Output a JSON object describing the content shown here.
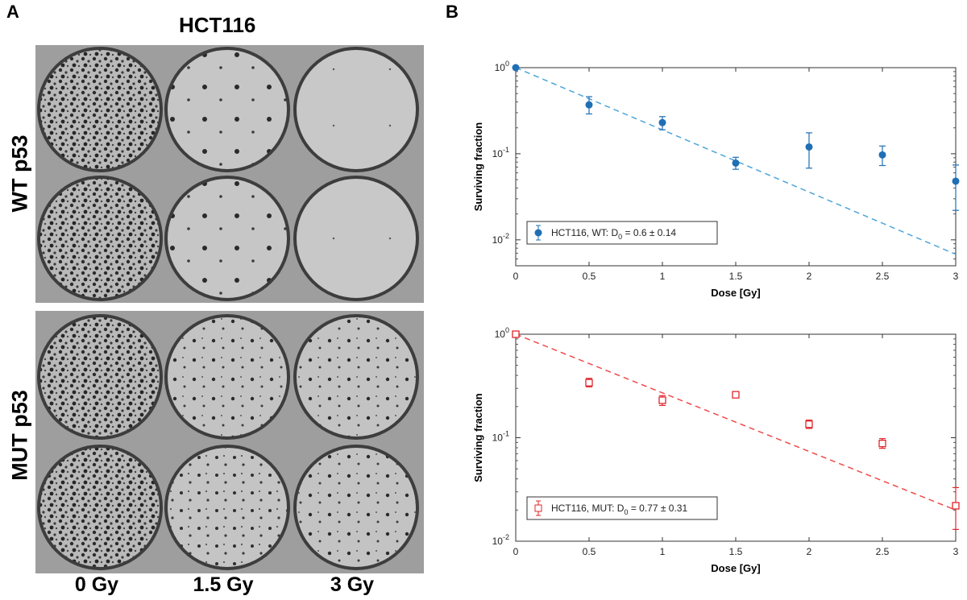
{
  "panel_a": {
    "label": "A",
    "title": "HCT116",
    "row_labels": [
      "WT p53",
      "MUT p53"
    ],
    "col_labels": [
      "0 Gy",
      "1.5 Gy",
      "3 Gy"
    ],
    "image_description_note": "colony formation wells"
  },
  "panel_b": {
    "label": "B"
  },
  "chart_data": [
    {
      "type": "scatter",
      "title": "",
      "xlabel": "Dose [Gy]",
      "ylabel": "Surviving fraction",
      "xlim": [
        0,
        3
      ],
      "ylim_log": [
        0.005,
        1
      ],
      "yscale": "log",
      "x_ticks": [
        "0",
        "0.5",
        "1",
        "1.5",
        "2",
        "2.5",
        "3"
      ],
      "y_ticks": [
        "10^0",
        "10^-1",
        "10^-2"
      ],
      "legend": {
        "text": "HCT116, WT: D",
        "sub": "0",
        "rest": " = 0.6 ± 0.14",
        "placement": "bottom-left"
      },
      "color": "#1f6fb5",
      "fit_color": "#4da6d9",
      "series": [
        {
          "name": "HCT116, WT",
          "x": [
            0,
            0.5,
            1,
            1.5,
            2,
            2.5,
            3
          ],
          "y": [
            1.0,
            0.37,
            0.23,
            0.078,
            0.12,
            0.097,
            0.048
          ],
          "err_lo": [
            1.0,
            0.29,
            0.19,
            0.066,
            0.068,
            0.073,
            0.022
          ],
          "err_hi": [
            1.0,
            0.46,
            0.27,
            0.091,
            0.175,
            0.123,
            0.074
          ]
        }
      ],
      "fit": {
        "x": [
          0,
          3
        ],
        "y": [
          1.0,
          0.0068
        ]
      }
    },
    {
      "type": "scatter",
      "title": "",
      "xlabel": "Dose [Gy]",
      "ylabel": "Surviving fraction",
      "xlim": [
        0,
        3
      ],
      "ylim_log": [
        0.01,
        1
      ],
      "yscale": "log",
      "x_ticks": [
        "0",
        "0.5",
        "1",
        "1.5",
        "2",
        "2.5",
        "3"
      ],
      "y_ticks": [
        "10^0",
        "10^-1",
        "10^-2"
      ],
      "legend": {
        "text": "HCT116, MUT: D",
        "sub": "0",
        "rest": " = 0.77 ± 0.31",
        "placement": "bottom-left"
      },
      "color": "#e0262b",
      "fit_color": "#ef4b4b",
      "series": [
        {
          "name": "HCT116, MUT",
          "x": [
            0,
            0.5,
            1,
            1.5,
            2,
            2.5,
            3
          ],
          "y": [
            1.0,
            0.34,
            0.23,
            0.26,
            0.135,
            0.088,
            0.022
          ],
          "err_lo": [
            1.0,
            0.31,
            0.205,
            0.245,
            0.123,
            0.079,
            0.013
          ],
          "err_hi": [
            1.0,
            0.375,
            0.255,
            0.275,
            0.148,
            0.098,
            0.033
          ]
        }
      ],
      "fit": {
        "x": [
          0,
          3
        ],
        "y": [
          1.0,
          0.02
        ]
      }
    }
  ]
}
